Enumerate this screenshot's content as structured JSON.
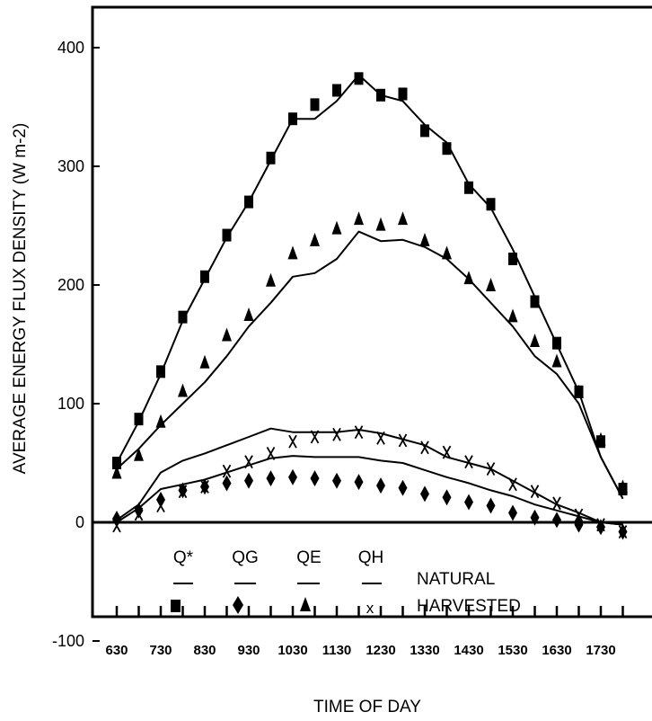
{
  "chart_data": {
    "type": "line",
    "ylabel": "AVERAGE ENERGY FLUX DENSITY (W m-2)",
    "xlabel": "TIME OF DAY",
    "ylim": [
      -100,
      450
    ],
    "yticks": [
      -100,
      0,
      100,
      200,
      300,
      400
    ],
    "x_tick_labels": [
      "630",
      "730",
      "830",
      "930",
      "1030",
      "1130",
      "1230",
      "1330",
      "1430",
      "1530",
      "1630",
      "1730"
    ],
    "x": [
      630,
      700,
      730,
      800,
      830,
      900,
      930,
      1000,
      1030,
      1100,
      1130,
      1200,
      1230,
      1300,
      1330,
      1400,
      1430,
      1500,
      1530,
      1600,
      1630,
      1700,
      1730,
      1800
    ],
    "legend": {
      "columns": [
        "Q*",
        "QG",
        "QE",
        "QH"
      ],
      "rows": [
        "NATURAL",
        "HARVESTED"
      ],
      "natural_marker": "line",
      "harvested_markers": [
        "square",
        "diamond",
        "triangle",
        "x"
      ]
    },
    "series": [
      {
        "name": "Q*",
        "treatment": "NATURAL",
        "style": "line",
        "values": [
          50,
          85,
          125,
          170,
          205,
          240,
          270,
          305,
          340,
          340,
          355,
          377,
          360,
          355,
          335,
          320,
          285,
          265,
          230,
          190,
          150,
          110,
          55,
          20
        ]
      },
      {
        "name": "Q*",
        "treatment": "HARVESTED",
        "style": "square",
        "values": [
          50,
          87,
          127,
          173,
          207,
          242,
          270,
          307,
          340,
          352,
          364,
          374,
          360,
          361,
          330,
          315,
          282,
          268,
          222,
          186,
          151,
          110,
          68,
          28
        ]
      },
      {
        "name": "QE",
        "treatment": "NATURAL",
        "style": "line",
        "values": [
          45,
          62,
          82,
          100,
          118,
          140,
          165,
          185,
          207,
          210,
          222,
          245,
          237,
          238,
          232,
          222,
          205,
          185,
          165,
          140,
          125,
          100,
          55,
          20
        ]
      },
      {
        "name": "QE",
        "treatment": "HARVESTED",
        "style": "triangle",
        "values": [
          42,
          57,
          85,
          111,
          135,
          158,
          175,
          204,
          227,
          238,
          248,
          256,
          251,
          256,
          238,
          227,
          206,
          200,
          174,
          153,
          136,
          110,
          70,
          30
        ]
      },
      {
        "name": "QH",
        "treatment": "NATURAL",
        "style": "line",
        "values": [
          2,
          15,
          42,
          52,
          58,
          65,
          72,
          79,
          76,
          76,
          76,
          78,
          75,
          70,
          65,
          55,
          50,
          45,
          35,
          25,
          15,
          8,
          0,
          -2
        ]
      },
      {
        "name": "QH",
        "treatment": "HARVESTED",
        "style": "x",
        "values": [
          -3,
          7,
          14,
          26,
          30,
          43,
          51,
          58,
          68,
          72,
          74,
          76,
          71,
          69,
          63,
          59,
          51,
          45,
          32,
          26,
          16,
          6,
          -2,
          -8
        ]
      },
      {
        "name": "QG",
        "treatment": "NATURAL",
        "style": "line",
        "values": [
          0,
          12,
          28,
          32,
          36,
          42,
          48,
          54,
          56,
          55,
          55,
          55,
          52,
          50,
          44,
          38,
          33,
          27,
          22,
          15,
          10,
          5,
          0,
          -2
        ]
      },
      {
        "name": "QG",
        "treatment": "HARVESTED",
        "style": "diamond",
        "values": [
          3,
          10,
          19,
          27,
          30,
          33,
          35,
          37,
          38,
          37,
          35,
          34,
          31,
          29,
          24,
          21,
          17,
          14,
          8,
          4,
          2,
          -2,
          -4,
          -8
        ]
      }
    ]
  }
}
